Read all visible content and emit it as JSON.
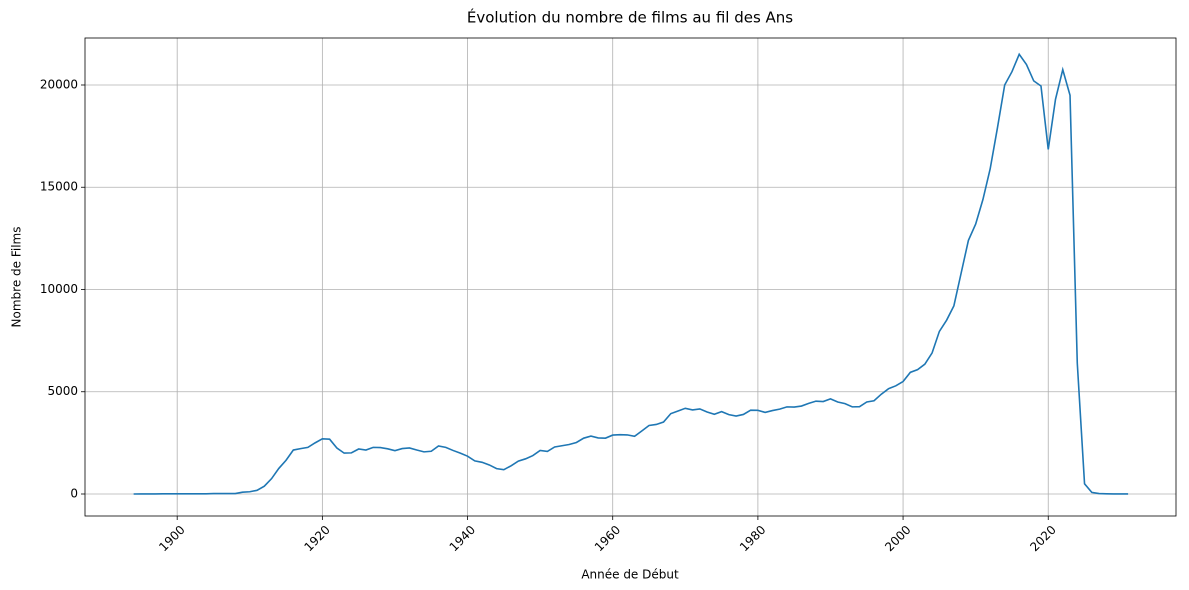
{
  "chart_data": {
    "type": "line",
    "title": "Évolution du nombre de films au fil des Ans",
    "x_label": "Année de Début",
    "y_label": "Nombre de Films",
    "color": "#1f77b4",
    "grid": true,
    "x": [
      1894,
      1895,
      1896,
      1897,
      1898,
      1899,
      1900,
      1901,
      1902,
      1903,
      1904,
      1905,
      1906,
      1907,
      1908,
      1909,
      1910,
      1911,
      1912,
      1913,
      1914,
      1915,
      1916,
      1917,
      1918,
      1919,
      1920,
      1921,
      1922,
      1923,
      1924,
      1925,
      1926,
      1927,
      1928,
      1929,
      1930,
      1931,
      1932,
      1933,
      1934,
      1935,
      1936,
      1937,
      1938,
      1939,
      1940,
      1941,
      1942,
      1943,
      1944,
      1945,
      1946,
      1947,
      1948,
      1949,
      1950,
      1951,
      1952,
      1953,
      1954,
      1955,
      1956,
      1957,
      1958,
      1959,
      1960,
      1961,
      1962,
      1963,
      1964,
      1965,
      1966,
      1967,
      1968,
      1969,
      1970,
      1971,
      1972,
      1973,
      1974,
      1975,
      1976,
      1977,
      1978,
      1979,
      1980,
      1981,
      1982,
      1983,
      1984,
      1985,
      1986,
      1987,
      1988,
      1989,
      1990,
      1991,
      1992,
      1993,
      1994,
      1995,
      1996,
      1997,
      1998,
      1999,
      2000,
      2001,
      2002,
      2003,
      2004,
      2005,
      2006,
      2007,
      2008,
      2009,
      2010,
      2011,
      2012,
      2013,
      2014,
      2015,
      2016,
      2017,
      2018,
      2019,
      2020,
      2021,
      2022,
      2023,
      2024,
      2025,
      2026,
      2027,
      2028,
      2029,
      2030,
      2031
    ],
    "values": [
      0,
      5,
      5,
      5,
      10,
      10,
      10,
      10,
      10,
      10,
      10,
      20,
      20,
      20,
      20,
      90,
      110,
      180,
      380,
      750,
      1250,
      1650,
      2150,
      2220,
      2280,
      2500,
      2700,
      2680,
      2250,
      2000,
      2010,
      2200,
      2150,
      2280,
      2270,
      2210,
      2120,
      2220,
      2250,
      2150,
      2060,
      2090,
      2350,
      2280,
      2130,
      2000,
      1850,
      1620,
      1550,
      1420,
      1240,
      1190,
      1380,
      1610,
      1720,
      1880,
      2130,
      2080,
      2300,
      2360,
      2420,
      2520,
      2730,
      2830,
      2740,
      2730,
      2880,
      2900,
      2890,
      2820,
      3080,
      3350,
      3400,
      3520,
      3930,
      4060,
      4190,
      4110,
      4160,
      4010,
      3900,
      4030,
      3880,
      3810,
      3890,
      4100,
      4090,
      3990,
      4080,
      4150,
      4260,
      4250,
      4300,
      4430,
      4540,
      4520,
      4650,
      4500,
      4420,
      4260,
      4270,
      4500,
      4560,
      4880,
      5150,
      5290,
      5500,
      5950,
      6080,
      6350,
      6900,
      7950,
      8500,
      9200,
      10800,
      12400,
      13200,
      14400,
      15900,
      17900,
      20000,
      20650,
      21500,
      21000,
      20200,
      19950,
      16850,
      19300,
      20750,
      19500,
      6400,
      500,
      80,
      20,
      10,
      5,
      5,
      5
    ],
    "xlim": [
      1887.3,
      2037.6
    ],
    "ylim": [
      -1076,
      22298
    ],
    "xticks": [
      1900,
      1920,
      1940,
      1960,
      1980,
      2000,
      2020
    ],
    "yticks": [
      0,
      5000,
      10000,
      15000,
      20000
    ]
  }
}
